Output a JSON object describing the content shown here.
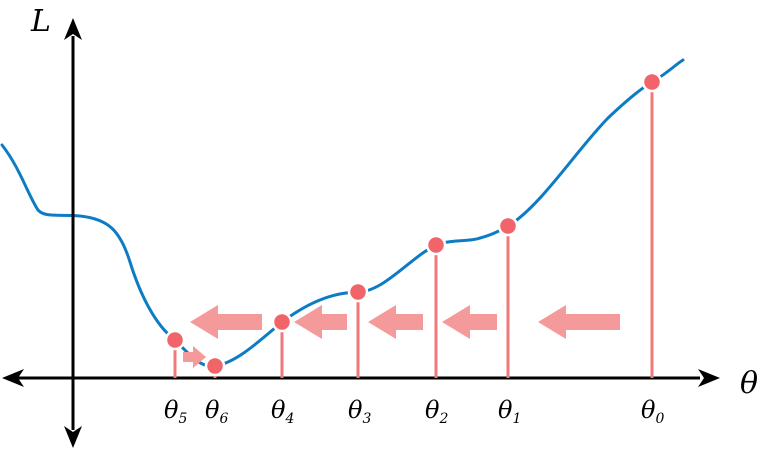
{
  "diagram": {
    "y_axis_label": "L",
    "x_axis_label": "θ",
    "colors": {
      "curve": "#0d7cc4",
      "point": "#f0646a",
      "drop_line": "#f07a7a",
      "arrow": "#f59a9a",
      "axis": "#000000"
    },
    "iterates": [
      {
        "base": "θ",
        "sub": "5"
      },
      {
        "base": "θ",
        "sub": "6"
      },
      {
        "base": "θ",
        "sub": "4"
      },
      {
        "base": "θ",
        "sub": "3"
      },
      {
        "base": "θ",
        "sub": "2"
      },
      {
        "base": "θ",
        "sub": "1"
      },
      {
        "base": "θ",
        "sub": "0"
      }
    ],
    "step_arrows": [
      {
        "direction": "left"
      },
      {
        "direction": "left"
      },
      {
        "direction": "left"
      },
      {
        "direction": "left"
      },
      {
        "direction": "left"
      },
      {
        "direction": "right"
      }
    ]
  }
}
